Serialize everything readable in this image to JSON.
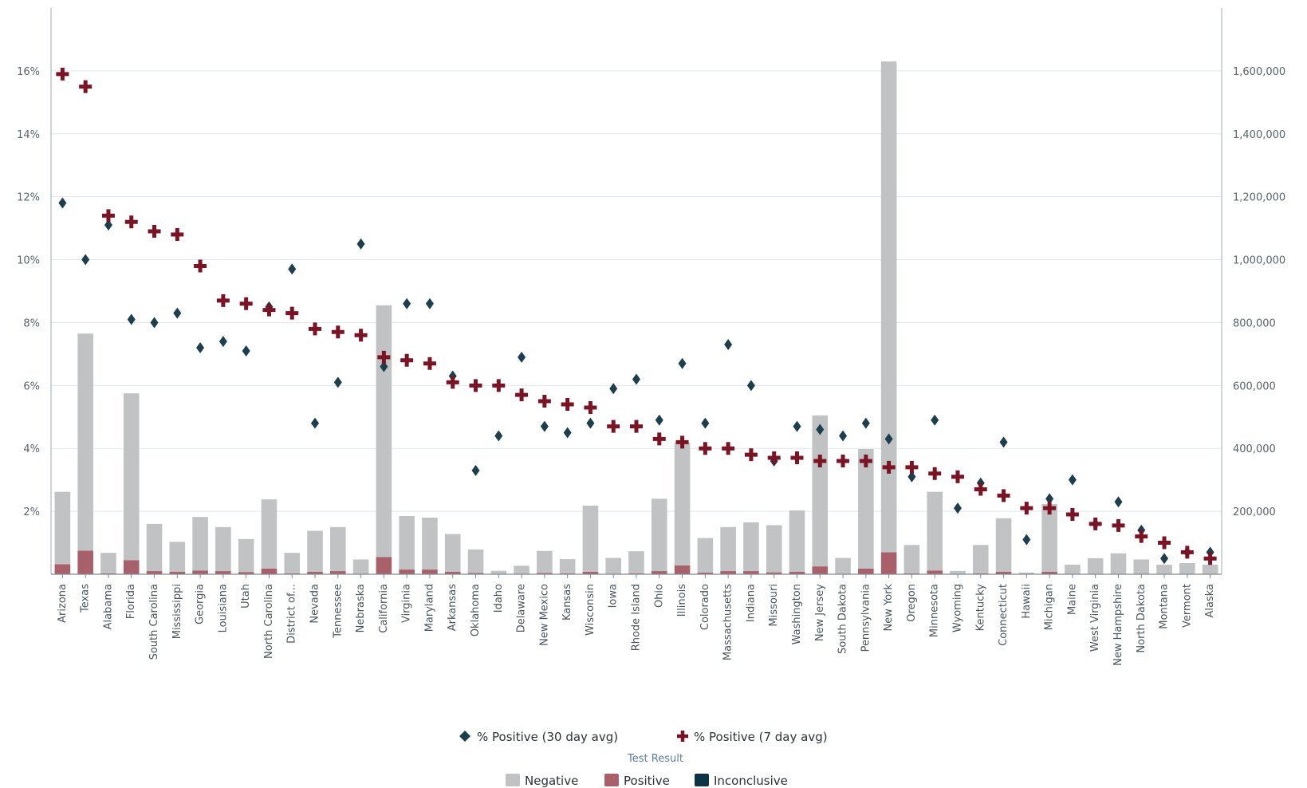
{
  "chart_data": {
    "type": "bar",
    "categories": [
      "Arizona",
      "Texas",
      "Alabama",
      "Florida",
      "South Carolina",
      "Mississippi",
      "Georgia",
      "Louisiana",
      "Utah",
      "North Carolina",
      "District of...",
      "Nevada",
      "Tennessee",
      "Nebraska",
      "California",
      "Virginia",
      "Maryland",
      "Arkansas",
      "Oklahoma",
      "Idaho",
      "Delaware",
      "New Mexico",
      "Kansas",
      "Wisconsin",
      "Iowa",
      "Rhode Island",
      "Ohio",
      "Illinois",
      "Colorado",
      "Massachusetts",
      "Indiana",
      "Missouri",
      "Washington",
      "New Jersey",
      "South Dakota",
      "Pennsylvania",
      "New York",
      "Oregon",
      "Minnesota",
      "Wyoming",
      "Kentucky",
      "Connecticut",
      "Hawaii",
      "Michigan",
      "Maine",
      "West Virginia",
      "New Hampshire",
      "North Dakota",
      "Montana",
      "Vermont",
      "Alaska"
    ],
    "bar_series": [
      {
        "name": "Negative",
        "color": "#c0c2c3",
        "axis": "right",
        "values": [
          230000,
          690000,
          65000,
          530000,
          150000,
          95000,
          170000,
          140000,
          105000,
          220000,
          65000,
          130000,
          140000,
          45000,
          800000,
          170000,
          165000,
          120000,
          75000,
          10000,
          25000,
          70000,
          45000,
          210000,
          50000,
          70000,
          230000,
          390000,
          110000,
          140000,
          155000,
          150000,
          195000,
          480000,
          50000,
          380000,
          1560000,
          90000,
          250000,
          10000,
          90000,
          170000,
          5000,
          215000,
          30000,
          50000,
          65000,
          45000,
          30000,
          35000,
          30000
        ]
      },
      {
        "name": "Positive",
        "color": "#a8606b",
        "axis": "right",
        "values": [
          32000,
          75000,
          3000,
          45000,
          10000,
          8000,
          12000,
          10000,
          7000,
          18000,
          3000,
          8000,
          10000,
          2000,
          55000,
          15000,
          15000,
          8000,
          4000,
          1000,
          2000,
          4000,
          3000,
          8000,
          2000,
          3000,
          10000,
          28000,
          5000,
          10000,
          10000,
          6000,
          8000,
          25000,
          2000,
          18000,
          70000,
          3000,
          12000,
          500,
          3000,
          8000,
          500,
          8000,
          500,
          1000,
          1500,
          2000,
          500,
          500,
          500
        ]
      },
      {
        "name": "Inconclusive",
        "color": "#0e3345",
        "axis": "right",
        "values": [
          0,
          0,
          0,
          0,
          0,
          0,
          0,
          0,
          0,
          0,
          0,
          0,
          0,
          0,
          0,
          0,
          0,
          0,
          0,
          0,
          0,
          0,
          0,
          0,
          0,
          0,
          0,
          0,
          0,
          0,
          0,
          0,
          0,
          0,
          0,
          0,
          0,
          0,
          0,
          0,
          0,
          0,
          0,
          0,
          0,
          0,
          0,
          0,
          0,
          0,
          0
        ]
      }
    ],
    "point_series": [
      {
        "name": "% Positive (30 day avg)",
        "color": "#1c3e4d",
        "marker": "diamond",
        "axis": "left",
        "values": [
          11.8,
          10.0,
          11.1,
          8.1,
          8.0,
          8.3,
          7.2,
          7.4,
          7.1,
          8.5,
          9.7,
          4.8,
          6.1,
          10.5,
          6.6,
          8.6,
          8.6,
          6.3,
          3.3,
          4.4,
          6.9,
          4.7,
          4.5,
          4.8,
          5.9,
          6.2,
          4.9,
          6.7,
          4.8,
          7.3,
          6.0,
          3.6,
          4.7,
          4.6,
          4.4,
          4.8,
          4.3,
          3.1,
          4.9,
          2.1,
          2.9,
          4.2,
          1.1,
          2.4,
          3.0,
          1.6,
          2.3,
          1.4,
          0.5,
          0.7,
          0.7
        ]
      },
      {
        "name": "% Positive (7 day avg)",
        "color": "#7a1425",
        "marker": "cross",
        "axis": "left",
        "values": [
          15.9,
          15.5,
          11.4,
          11.2,
          10.9,
          10.8,
          9.8,
          8.7,
          8.6,
          8.4,
          8.3,
          7.8,
          7.7,
          7.6,
          6.9,
          6.8,
          6.7,
          6.1,
          6.0,
          6.0,
          5.7,
          5.5,
          5.4,
          5.3,
          4.7,
          4.7,
          4.3,
          4.2,
          4.0,
          4.0,
          3.8,
          3.7,
          3.7,
          3.6,
          3.6,
          3.6,
          3.4,
          3.4,
          3.2,
          3.1,
          2.7,
          2.5,
          2.1,
          2.1,
          1.9,
          1.6,
          1.55,
          1.2,
          1.0,
          0.7,
          0.5
        ]
      }
    ],
    "y_left": {
      "min": 0,
      "max": 18,
      "ticks": [
        2,
        4,
        6,
        8,
        10,
        12,
        14,
        16
      ],
      "format": "percent"
    },
    "y_right": {
      "min": 0,
      "max": 1800000,
      "ticks": [
        200000,
        400000,
        600000,
        800000,
        1000000,
        1200000,
        1400000,
        1600000
      ],
      "format": "thousands"
    },
    "grid": true,
    "legend": {
      "points": [
        "% Positive (30 day avg)",
        "% Positive (7 day avg)"
      ],
      "bars_title": "Test Result",
      "bars": [
        "Negative",
        "Positive",
        "Inconclusive"
      ],
      "position": "bottom"
    },
    "title": "",
    "xlabel": "",
    "ylabel": ""
  }
}
